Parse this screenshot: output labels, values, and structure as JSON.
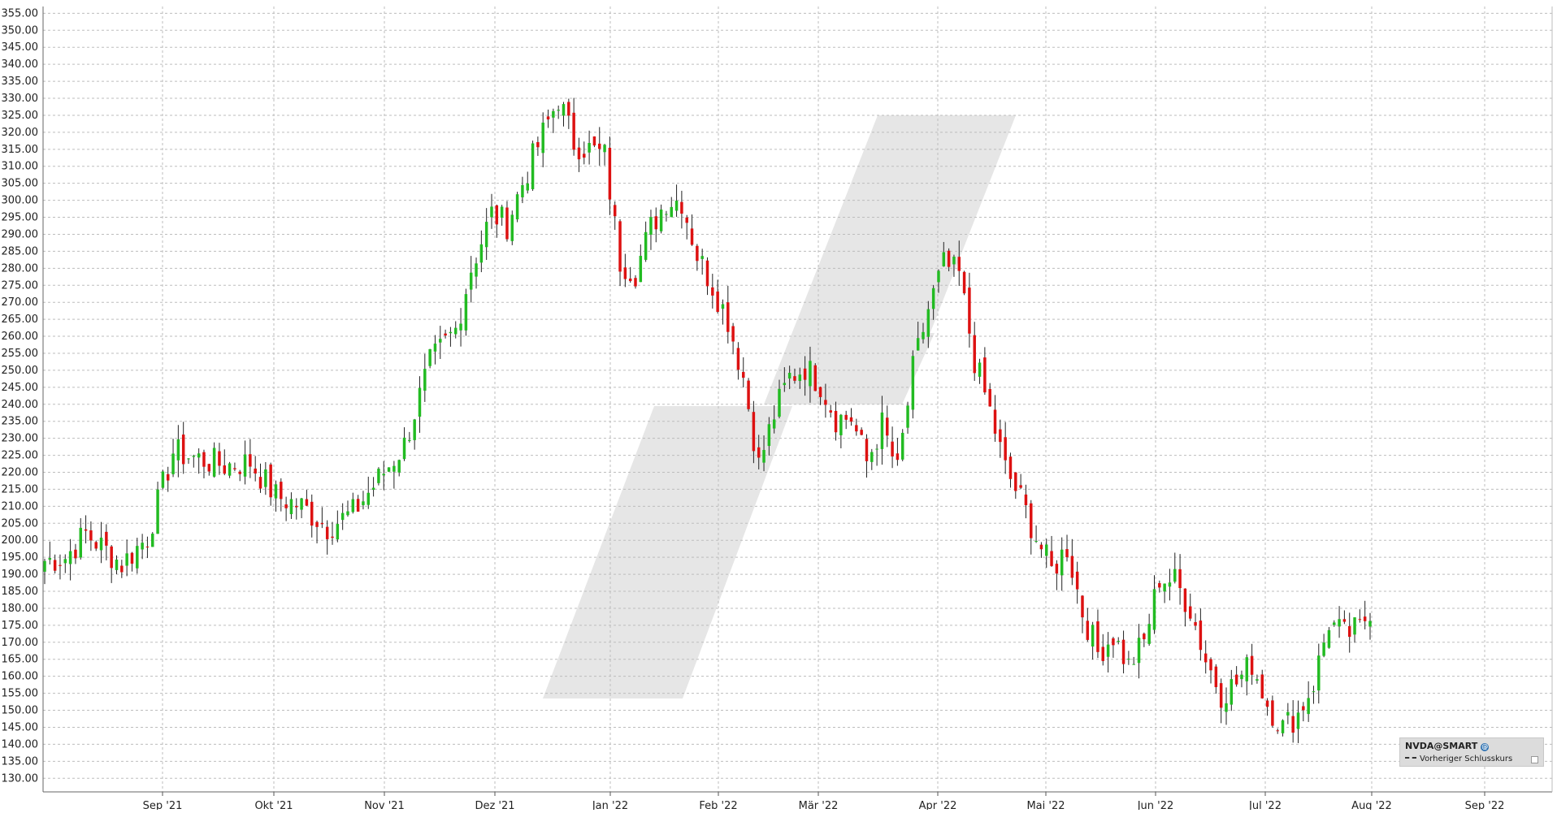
{
  "chart_data": {
    "type": "candlestick",
    "title": "",
    "xlabel": "",
    "ylabel": "",
    "ylim": [
      126,
      357
    ],
    "yticks": [
      130,
      135,
      140,
      145,
      150,
      155,
      160,
      165,
      170,
      175,
      180,
      185,
      190,
      195,
      200,
      205,
      210,
      215,
      220,
      225,
      230,
      235,
      240,
      245,
      250,
      255,
      260,
      265,
      270,
      275,
      280,
      285,
      290,
      295,
      300,
      305,
      310,
      315,
      320,
      325,
      330,
      335,
      340,
      345,
      350,
      355
    ],
    "ytick_labels": [
      "130.00",
      "135.00",
      "140.00",
      "145.00",
      "150.00",
      "155.00",
      "160.00",
      "165.00",
      "170.00",
      "175.00",
      "180.00",
      "185.00",
      "190.00",
      "195.00",
      "200.00",
      "205.00",
      "210.00",
      "215.00",
      "220.00",
      "225.00",
      "230.00",
      "235.00",
      "240.00",
      "245.00",
      "250.00",
      "255.00",
      "260.00",
      "265.00",
      "270.00",
      "275.00",
      "280.00",
      "285.00",
      "290.00",
      "295.00",
      "300.00",
      "305.00",
      "310.00",
      "315.00",
      "320.00",
      "325.00",
      "330.00",
      "335.00",
      "340.00",
      "345.00",
      "350.00",
      "355.00"
    ],
    "x_ticks": [
      "Sep '21",
      "Okt '21",
      "Nov '21",
      "Dez '21",
      "Jan '22",
      "Feb '22",
      "Mär '22",
      "Apr '22",
      "Mai '22",
      "Jun '22",
      "Jul '22",
      "Aug '22",
      "Sep '22"
    ],
    "grid": true,
    "up_color": "#22bb22",
    "down_color": "#dd1111",
    "anchors": [
      [
        0,
        194
      ],
      [
        4,
        195
      ],
      [
        8,
        202
      ],
      [
        12,
        197
      ],
      [
        15,
        193
      ],
      [
        20,
        201
      ],
      [
        25,
        226
      ],
      [
        30,
        224
      ],
      [
        35,
        222
      ],
      [
        40,
        223
      ],
      [
        45,
        213
      ],
      [
        50,
        210
      ],
      [
        55,
        204
      ],
      [
        60,
        208
      ],
      [
        65,
        218
      ],
      [
        70,
        228
      ],
      [
        75,
        252
      ],
      [
        80,
        262
      ],
      [
        83,
        280
      ],
      [
        87,
        296
      ],
      [
        90,
        293
      ],
      [
        93,
        305
      ],
      [
        96,
        316
      ],
      [
        100,
        330
      ],
      [
        103,
        317
      ],
      [
        106,
        315
      ],
      [
        109,
        313
      ],
      [
        112,
        282
      ],
      [
        115,
        279
      ],
      [
        118,
        292
      ],
      [
        121,
        300
      ],
      [
        124,
        300
      ],
      [
        127,
        284
      ],
      [
        130,
        275
      ],
      [
        133,
        265
      ],
      [
        136,
        248
      ],
      [
        139,
        222
      ],
      [
        142,
        237
      ],
      [
        145,
        248
      ],
      [
        148,
        251
      ],
      [
        151,
        246
      ],
      [
        154,
        236
      ],
      [
        157,
        236
      ],
      [
        160,
        223
      ],
      [
        163,
        234
      ],
      [
        166,
        220
      ],
      [
        169,
        250
      ],
      [
        172,
        268
      ],
      [
        175,
        281
      ],
      [
        178,
        278
      ],
      [
        181,
        253
      ],
      [
        184,
        238
      ],
      [
        187,
        221
      ],
      [
        190,
        212
      ],
      [
        193,
        201
      ],
      [
        196,
        191
      ],
      [
        199,
        198
      ],
      [
        202,
        179
      ],
      [
        205,
        167
      ],
      [
        208,
        172
      ],
      [
        211,
        163
      ],
      [
        214,
        170
      ],
      [
        217,
        189
      ],
      [
        220,
        188
      ],
      [
        223,
        180
      ],
      [
        226,
        165
      ],
      [
        229,
        155
      ],
      [
        232,
        158
      ],
      [
        235,
        164
      ],
      [
        238,
        152
      ],
      [
        241,
        145
      ],
      [
        244,
        149
      ],
      [
        247,
        158
      ],
      [
        250,
        176
      ],
      [
        253,
        172
      ],
      [
        256,
        174
      ],
      [
        258,
        180
      ]
    ],
    "series_count": 259
  },
  "legend": {
    "symbol": "NVDA@SMART",
    "at_icon": "@",
    "line_label": "Vorheriger Schlusskurs"
  },
  "watermark_icon": "slash-logo-watermark"
}
